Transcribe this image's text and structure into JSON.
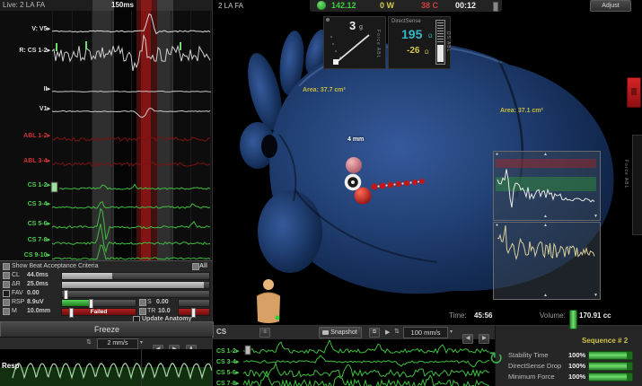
{
  "icons": {
    "arrow": "▸",
    "caret": "▾",
    "play": "▶",
    "updown": "⇅",
    "tri_up": "▲",
    "tri_down": "▼",
    "menu": "≡",
    "page": "⧉",
    "bar": "▮"
  },
  "live_panel": {
    "title": "Live: 2 LA FA",
    "caliper_label": "150ms",
    "channels": [
      {
        "label": "V: V5"
      },
      {
        "label": "R: CS 1-2"
      },
      {
        "label": "II"
      },
      {
        "label": "V1"
      },
      {
        "label": "ABL 1-2"
      },
      {
        "label": "ABL 3-4"
      },
      {
        "label": "CS 1-2"
      },
      {
        "label": "CS 3-4"
      },
      {
        "label": "CS 5-6"
      },
      {
        "label": "CS 7-8"
      },
      {
        "label": "CS 9-10"
      }
    ],
    "criteria": {
      "header": "Show Beat Acceptance Criteria",
      "all_label": "All",
      "cl_name": "CL",
      "cl_value": "44.0ms",
      "dr_name": "ΔR",
      "dr_value": "25.0ms",
      "fav_name": "FAV",
      "fav_value": "0.00",
      "rsp_name": "RSP",
      "rsp_value": "8.9uV",
      "s_name": "S",
      "s_value": "0.00",
      "m_name": "M",
      "m_value": "10.0mm",
      "m_status": "Failed",
      "tr_name": "TR",
      "tr_value": "10.0",
      "update_anatomy": "Update Anatomy"
    },
    "freeze_label": "Freeze",
    "resp": {
      "speed": "2 mm/s",
      "label": "Resp"
    }
  },
  "map": {
    "view_label": "2 LA FA",
    "status": {
      "rate": "142.12",
      "power": "0 W",
      "temp": "38 C",
      "clock": "00:12"
    },
    "force": {
      "value": "3",
      "unit": "g",
      "axis": "Force ABL"
    },
    "directsense": {
      "title": "DirectSense",
      "impedance": "195",
      "unit": "Ω",
      "drop": "-26",
      "axis": "DS ABL"
    },
    "area_label_1": "Area: 37.7 cm²",
    "area_label_2": "Area: 37.1 cm²",
    "tip_distance": "4 mm",
    "adjust_label": "Adjust",
    "chart1_axis": "Force ABL",
    "time_label": "Time:",
    "time_value": "45:56",
    "volume_label": "Volume:",
    "volume_value": "170.91 cc"
  },
  "bottom": {
    "lead_group": "CS",
    "snapshot_label": "Snapshot",
    "sweep_speed": "100 mm/s",
    "channels": [
      {
        "label": "CS 1-2"
      },
      {
        "label": "CS 3-4"
      },
      {
        "label": "CS 5-6"
      },
      {
        "label": "CS 7-8"
      }
    ],
    "sequence_label": "Sequence # 2",
    "metrics": [
      {
        "label": "Stability Time",
        "value": "100%"
      },
      {
        "label": "DirectSense Drop",
        "value": "100%"
      },
      {
        "label": "Minimum Force",
        "value": "100%"
      }
    ]
  }
}
